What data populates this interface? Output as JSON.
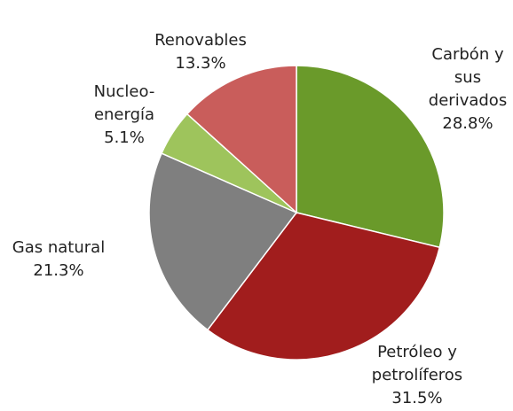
{
  "chart_data": {
    "type": "pie",
    "categories": [
      "Carbón y\nsus\nderivados",
      "Petróleo y\npetrolíferos",
      "Gas natural",
      "Nucleo-\nenergía",
      "Renovables"
    ],
    "values": [
      28.8,
      31.5,
      21.3,
      5.1,
      13.3
    ],
    "value_labels": [
      "28.8%",
      "31.5%",
      "21.3%",
      "5.1%",
      "13.3%"
    ],
    "colors": [
      "#6a9a2a",
      "#a11d1d",
      "#7f7f7f",
      "#9ec45c",
      "#c95d5b"
    ]
  }
}
